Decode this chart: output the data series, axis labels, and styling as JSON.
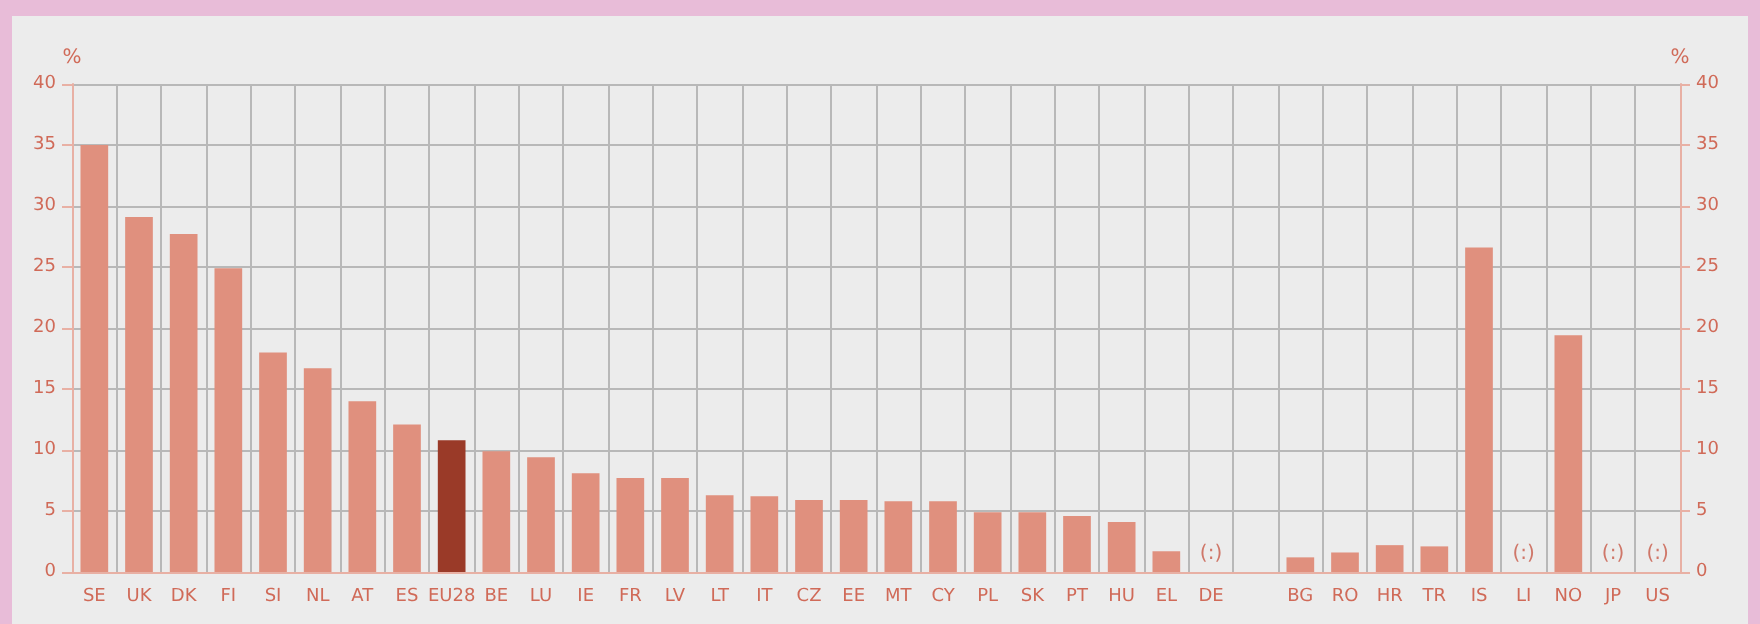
{
  "chart_data": {
    "type": "bar",
    "ylabel": "%",
    "y2label": "%",
    "categories": [
      "SE",
      "UK",
      "DK",
      "FI",
      "SI",
      "NL",
      "AT",
      "ES",
      "EU28",
      "BE",
      "LU",
      "IE",
      "FR",
      "LV",
      "LT",
      "IT",
      "CZ",
      "EE",
      "MT",
      "CY",
      "PL",
      "SK",
      "PT",
      "HU",
      "EL",
      "DE",
      null,
      "BG",
      "RO",
      "HR",
      "TR",
      "IS",
      "LI",
      "NO",
      "JP",
      "US"
    ],
    "values": [
      35,
      29.1,
      27.7,
      24.9,
      18,
      16.7,
      14,
      12.1,
      10.8,
      9.9,
      9.4,
      8.1,
      7.7,
      7.7,
      6.3,
      6.2,
      5.9,
      5.9,
      5.8,
      5.8,
      4.9,
      4.9,
      4.6,
      4.1,
      1.7,
      null,
      null,
      1.2,
      1.6,
      2.2,
      2.1,
      26.6,
      null,
      19.4,
      null,
      null
    ],
    "value_labels": [
      null,
      null,
      null,
      null,
      null,
      null,
      null,
      null,
      null,
      null,
      null,
      null,
      null,
      null,
      null,
      null,
      null,
      null,
      null,
      null,
      null,
      null,
      null,
      null,
      null,
      "(:)",
      null,
      null,
      null,
      null,
      null,
      null,
      "(:)",
      null,
      "(:)",
      "(:)"
    ],
    "colors": [
      "#e0907e",
      "#e0907e",
      "#e0907e",
      "#e0907e",
      "#e0907e",
      "#e0907e",
      "#e0907e",
      "#e0907e",
      "#9a3a28",
      "#e0907e",
      "#e0907e",
      "#e0907e",
      "#e0907e",
      "#e0907e",
      "#e0907e",
      "#e0907e",
      "#e0907e",
      "#e0907e",
      "#e0907e",
      "#e0907e",
      "#e0907e",
      "#e0907e",
      "#e0907e",
      "#e0907e",
      "#e0907e",
      "#e0907e",
      "#e0907e",
      "#e0907e",
      "#e0907e",
      "#e0907e",
      "#e0907e",
      "#e0907e",
      "#e0907e",
      "#e0907e",
      "#e0907e",
      "#e0907e"
    ],
    "ylim": [
      0,
      40
    ],
    "yticks": [
      0,
      5,
      10,
      15,
      20,
      25,
      30,
      35,
      40
    ],
    "y2lim": [
      0,
      40
    ],
    "y2ticks": [
      0,
      5,
      10,
      15,
      20,
      25,
      30,
      35,
      40
    ],
    "grid": true
  }
}
